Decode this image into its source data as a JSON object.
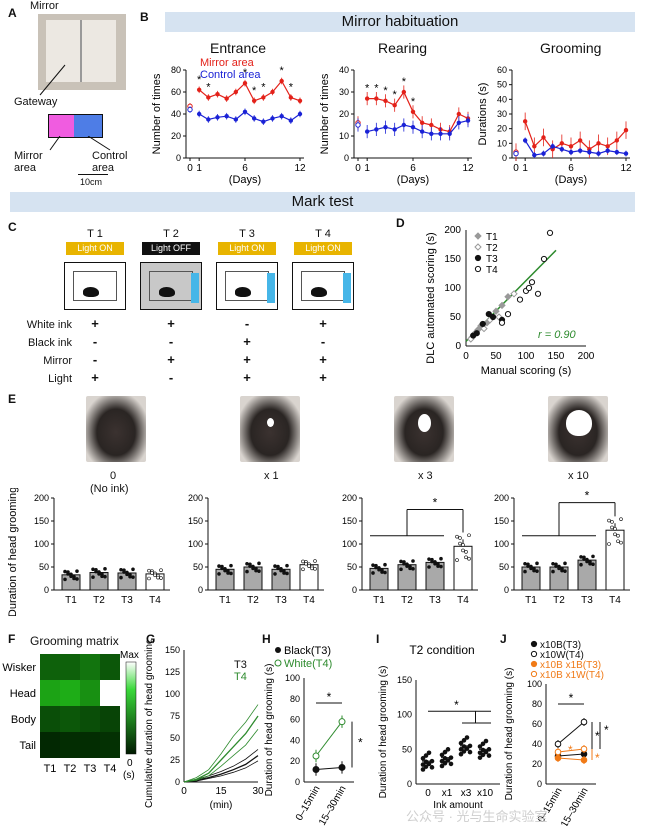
{
  "panel_labels": {
    "A": "A",
    "B": "B",
    "C": "C",
    "D": "D",
    "E": "E",
    "F": "F",
    "G": "G",
    "H": "H",
    "I": "I",
    "J": "J"
  },
  "panel_a": {
    "mirror": "Mirror",
    "gateway": "Gateway",
    "mirror_area": "Mirror area",
    "control_area": "Control area",
    "scale": "10cm"
  },
  "section_titles": {
    "habituation": "Mirror habituation",
    "mark_test": "Mark test"
  },
  "panel_b": {
    "legend_mirror": "Mirror area",
    "legend_control": "Control area",
    "colors": {
      "mirror": "#e32119",
      "control": "#1a22d6"
    },
    "chart_data": [
      {
        "type": "line",
        "title": "Entrance",
        "ylabel": "Number of times",
        "xlabel": "(Days)",
        "xticks": [
          "0",
          "1",
          "6",
          "12"
        ],
        "series": [
          {
            "name": "Mirror area",
            "x": [
              0,
              1,
              2,
              3,
              4,
              5,
              6,
              7,
              8,
              9,
              10,
              11,
              12
            ],
            "values": [
              47,
              62,
              55,
              58,
              54,
              60,
              68,
              52,
              55,
              60,
              70,
              55,
              52
            ]
          },
          {
            "name": "Control area",
            "x": [
              0,
              1,
              2,
              3,
              4,
              5,
              6,
              7,
              8,
              9,
              10,
              11,
              12
            ],
            "values": [
              44,
              40,
              35,
              37,
              38,
              35,
              42,
              36,
              33,
              36,
              38,
              34,
              40
            ]
          }
        ],
        "sig_markers": [
          "*",
          "*",
          "*",
          "*",
          "*",
          "*",
          "*"
        ]
      },
      {
        "type": "line",
        "title": "Rearing",
        "ylabel": "Number of times",
        "xlabel": "(Days)",
        "xticks": [
          "0",
          "1",
          "6",
          "12"
        ],
        "series": [
          {
            "name": "Mirror area",
            "x": [
              0,
              1,
              2,
              3,
              4,
              5,
              6,
              7,
              8,
              9,
              10,
              11,
              12
            ],
            "values": [
              16,
              27,
              27,
              26,
              24,
              30,
              21,
              16,
              15,
              13,
              12,
              20,
              18
            ]
          },
          {
            "name": "Control area",
            "x": [
              0,
              1,
              2,
              3,
              4,
              5,
              6,
              7,
              8,
              9,
              10,
              11,
              12
            ],
            "values": [
              15,
              12,
              13,
              14,
              13,
              15,
              14,
              12,
              11,
              11,
              11,
              16,
              17
            ]
          }
        ],
        "sig_markers": [
          "*",
          "*",
          "*",
          "*",
          "*",
          "*"
        ]
      },
      {
        "type": "line",
        "title": "Grooming",
        "ylabel": "Durations (s)",
        "xlabel": "(Days)",
        "xticks": [
          "0",
          "1",
          "6",
          "12"
        ],
        "series": [
          {
            "name": "Mirror area",
            "x": [
              0,
              1,
              2,
              3,
              4,
              5,
              6,
              7,
              8,
              9,
              10,
              11,
              12
            ],
            "values": [
              4,
              25,
              8,
              14,
              6,
              10,
              8,
              12,
              6,
              10,
              8,
              12,
              19
            ]
          },
          {
            "name": "Control area",
            "x": [
              0,
              1,
              2,
              3,
              4,
              5,
              6,
              7,
              8,
              9,
              10,
              11,
              12
            ],
            "values": [
              3,
              12,
              2,
              3,
              8,
              6,
              4,
              5,
              4,
              3,
              5,
              4,
              3
            ]
          }
        ]
      }
    ]
  },
  "panel_c": {
    "trials": [
      {
        "title": "T 1",
        "light": "Light ON",
        "white": "+",
        "black": "-",
        "mirror": "-",
        "light_sign": "+"
      },
      {
        "title": "T 2",
        "light": "Light OFF",
        "white": "+",
        "black": "-",
        "mirror": "+",
        "light_sign": "-"
      },
      {
        "title": "T 3",
        "light": "Light ON",
        "white": "-",
        "black": "+",
        "mirror": "+",
        "light_sign": "+"
      },
      {
        "title": "T 4",
        "light": "Light ON",
        "white": "+",
        "black": "-",
        "mirror": "+",
        "light_sign": "+"
      }
    ],
    "row_labels": {
      "white": "White ink",
      "black": "Black ink",
      "mirror": "Mirror",
      "light": "Light"
    }
  },
  "panel_d": {
    "chart_data": {
      "type": "scatter",
      "xlabel": "Manual scoring (s)",
      "ylabel": "DLC automated scoring (s)",
      "xlim": [
        0,
        200
      ],
      "ylim": [
        0,
        200
      ],
      "xticks": [
        "0",
        "50",
        "100",
        "150",
        "200"
      ],
      "yticks": [
        "0",
        "50",
        "100",
        "150",
        "200"
      ],
      "legend": [
        "T1",
        "T2",
        "T3",
        "T4"
      ],
      "r_label": "r = 0.90",
      "trend_color": "#2e8b2e",
      "series": [
        {
          "name": "T1",
          "points": [
            [
              10,
              15
            ],
            [
              20,
              28
            ],
            [
              25,
              35
            ],
            [
              35,
              40
            ],
            [
              50,
              60
            ],
            [
              60,
              70
            ],
            [
              70,
              85
            ]
          ]
        },
        {
          "name": "T2",
          "points": [
            [
              8,
              12
            ],
            [
              15,
              22
            ],
            [
              30,
              30
            ],
            [
              40,
              45
            ],
            [
              55,
              50
            ],
            [
              80,
              90
            ]
          ]
        },
        {
          "name": "T3",
          "points": [
            [
              12,
              18
            ],
            [
              18,
              22
            ],
            [
              28,
              38
            ],
            [
              38,
              55
            ],
            [
              45,
              50
            ],
            [
              60,
              45
            ]
          ]
        },
        {
          "name": "T4",
          "points": [
            [
              60,
              40
            ],
            [
              70,
              55
            ],
            [
              90,
              80
            ],
            [
              100,
              95
            ],
            [
              110,
              110
            ],
            [
              120,
              90
            ],
            [
              130,
              150
            ],
            [
              140,
              195
            ],
            [
              105,
              100
            ]
          ]
        }
      ],
      "trend": [
        [
          0,
          8
        ],
        [
          150,
          165
        ]
      ]
    }
  },
  "panel_e": {
    "photo_labels": [
      "0",
      "(No ink)",
      "x 1",
      "x 3",
      "x 10"
    ],
    "ylabel": "Duration of head grooming (s)",
    "chart_data": [
      {
        "type": "bar",
        "title": "0",
        "categories": [
          "T1",
          "T2",
          "T3",
          "T4"
        ],
        "values": [
          33,
          38,
          37,
          35
        ],
        "ylim": [
          0,
          200
        ]
      },
      {
        "type": "bar",
        "title": "x 1",
        "categories": [
          "T1",
          "T2",
          "T3",
          "T4"
        ],
        "values": [
          45,
          50,
          45,
          55
        ],
        "ylim": [
          0,
          200
        ]
      },
      {
        "type": "bar",
        "title": "x 3",
        "categories": [
          "T1",
          "T2",
          "T3",
          "T4"
        ],
        "values": [
          47,
          55,
          60,
          95
        ],
        "ylim": [
          0,
          200
        ],
        "sig": "*"
      },
      {
        "type": "bar",
        "title": "x 10",
        "categories": [
          "T1",
          "T2",
          "T3",
          "T4"
        ],
        "values": [
          50,
          50,
          65,
          130
        ],
        "ylim": [
          0,
          200
        ],
        "sig": "*"
      }
    ],
    "yticks": [
      "0",
      "50",
      "100",
      "150",
      "200"
    ],
    "bar_colors": [
      "#a9a9a9",
      "#a9a9a9",
      "#a9a9a9",
      "#ffffff"
    ]
  },
  "panel_f": {
    "title": "Grooming matrix",
    "rows": [
      "Wisker",
      "Head",
      "Body",
      "Tail"
    ],
    "cols": [
      "T1",
      "T2",
      "T3",
      "T4"
    ],
    "legend_max": "Max",
    "legend_min": "0",
    "legend_unit": "(s)",
    "chart_data": {
      "type": "heatmap",
      "values": [
        [
          0.35,
          0.35,
          0.45,
          0.3
        ],
        [
          0.7,
          0.75,
          0.6,
          1.0
        ],
        [
          0.25,
          0.3,
          0.25,
          0.2
        ],
        [
          0.05,
          0.08,
          0.08,
          0.1
        ]
      ]
    }
  },
  "panel_g": {
    "ylabel": "Cumulative duration of head grooming (s)",
    "xlabel": "(min)",
    "xticks": [
      "0",
      "15",
      "30"
    ],
    "yticks": [
      "0",
      "25",
      "50",
      "75",
      "100",
      "125",
      "150"
    ],
    "legend": {
      "t3": "T3",
      "t4": "T4"
    },
    "colors": {
      "t3": "#111111",
      "t4": "#2e8b2e"
    },
    "chart_data": {
      "type": "line",
      "x": [
        0,
        5,
        10,
        15,
        20,
        25,
        30
      ],
      "series": [
        {
          "name": "T3 mean",
          "values": [
            0,
            2,
            5,
            9,
            14,
            20,
            30
          ]
        },
        {
          "name": "T3 upper",
          "values": [
            0,
            3,
            7,
            12,
            18,
            26,
            37
          ]
        },
        {
          "name": "T3 lower",
          "values": [
            0,
            1,
            4,
            7,
            11,
            16,
            24
          ]
        },
        {
          "name": "T4 mean",
          "values": [
            0,
            3,
            10,
            25,
            40,
            55,
            75
          ]
        },
        {
          "name": "T4 upper",
          "values": [
            0,
            5,
            14,
            32,
            52,
            68,
            88
          ]
        },
        {
          "name": "T4 lower",
          "values": [
            0,
            2,
            7,
            18,
            30,
            42,
            60
          ]
        }
      ]
    }
  },
  "panel_h": {
    "legend": {
      "black": "Black(T3)",
      "white": "White(T4)"
    },
    "ylabel": "Duration of head grooming (s)",
    "xticks": [
      "0–15min",
      "15–30min"
    ],
    "yticks": [
      "0",
      "20",
      "40",
      "60",
      "80",
      "100"
    ],
    "chart_data": {
      "type": "line",
      "categories": [
        "0–15min",
        "15–30min"
      ],
      "series": [
        {
          "name": "Black(T3)",
          "values": [
            12,
            14
          ]
        },
        {
          "name": "White(T4)",
          "values": [
            25,
            58
          ]
        }
      ]
    },
    "sig": [
      "*",
      "*"
    ]
  },
  "panel_i": {
    "title": "T2 condition",
    "ylabel": "Duration of head grooming (s)",
    "xlabel": "Ink amount",
    "xticks": [
      "0",
      "x1",
      "x3",
      "x10"
    ],
    "yticks": [
      "0",
      "50",
      "100",
      "150"
    ],
    "sig": "*",
    "chart_data": {
      "type": "scatter",
      "categories": [
        "0",
        "x1",
        "x3",
        "x10"
      ],
      "means": [
        33,
        38,
        55,
        50
      ]
    }
  },
  "panel_j": {
    "legend": [
      "x10B(T3)",
      "x10W(T4)",
      "x10B x1B(T3)",
      "x10B x1W(T4)"
    ],
    "ylabel": "Duration of head grooming (s)",
    "xticks": [
      "0–15min",
      "15–30min"
    ],
    "yticks": [
      "0",
      "20",
      "40",
      "60",
      "80",
      "100"
    ],
    "colors": {
      "black": "#111111",
      "orange": "#f07a17"
    },
    "chart_data": {
      "type": "line",
      "categories": [
        "0–15min",
        "15–30min"
      ],
      "series": [
        {
          "name": "x10B(T3)",
          "values": [
            28,
            30
          ]
        },
        {
          "name": "x10W(T4)",
          "values": [
            40,
            62
          ]
        },
        {
          "name": "x10B x1B(T3)",
          "values": [
            26,
            24
          ]
        },
        {
          "name": "x10B x1W(T4)",
          "values": [
            32,
            35
          ]
        }
      ]
    },
    "sig": [
      "*",
      "*",
      "*",
      "*"
    ]
  },
  "watermark": "公众号 · 光与生命实验室"
}
